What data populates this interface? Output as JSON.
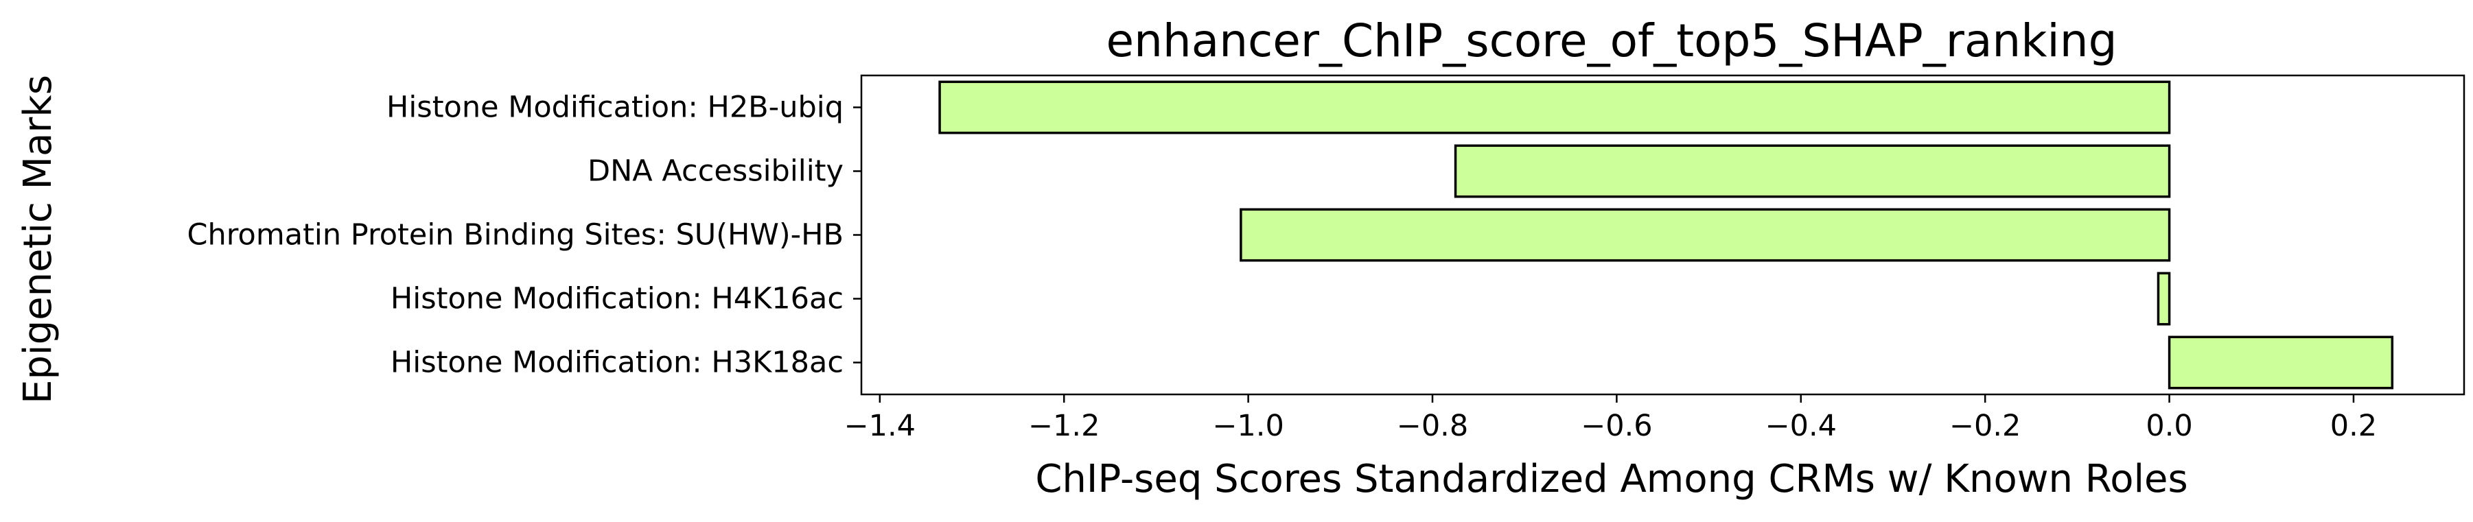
{
  "chart_data": {
    "type": "bar",
    "orientation": "horizontal",
    "title": "enhancer_ChIP_score_of_top5_SHAP_ranking",
    "xlabel": "ChIP-seq Scores Standardized Among CRMs w/ Known Roles",
    "ylabel": "Epigenetic Marks",
    "categories": [
      "Histone Modification: H2B-ubiq",
      "DNA Accessibility",
      "Chromatin Protein Binding Sites: SU(HW)-HB",
      "Histone Modification: H4K16ac",
      "Histone Modification: H3K18ac"
    ],
    "values": [
      -1.335,
      -0.775,
      -1.008,
      -0.012,
      0.242
    ],
    "xlim": [
      -1.42,
      0.32
    ],
    "xticks": [
      -1.4,
      -1.2,
      -1.0,
      -0.8,
      -0.6,
      -0.4,
      -0.2,
      0.0,
      0.2
    ],
    "xtick_labels": [
      "−1.4",
      "−1.2",
      "−1.0",
      "−0.8",
      "−0.6",
      "−0.4",
      "−0.2",
      "0.0",
      "0.2"
    ],
    "bar_color": "#ccff99",
    "edge_color": "#000000",
    "grid": false,
    "legend": false
  }
}
